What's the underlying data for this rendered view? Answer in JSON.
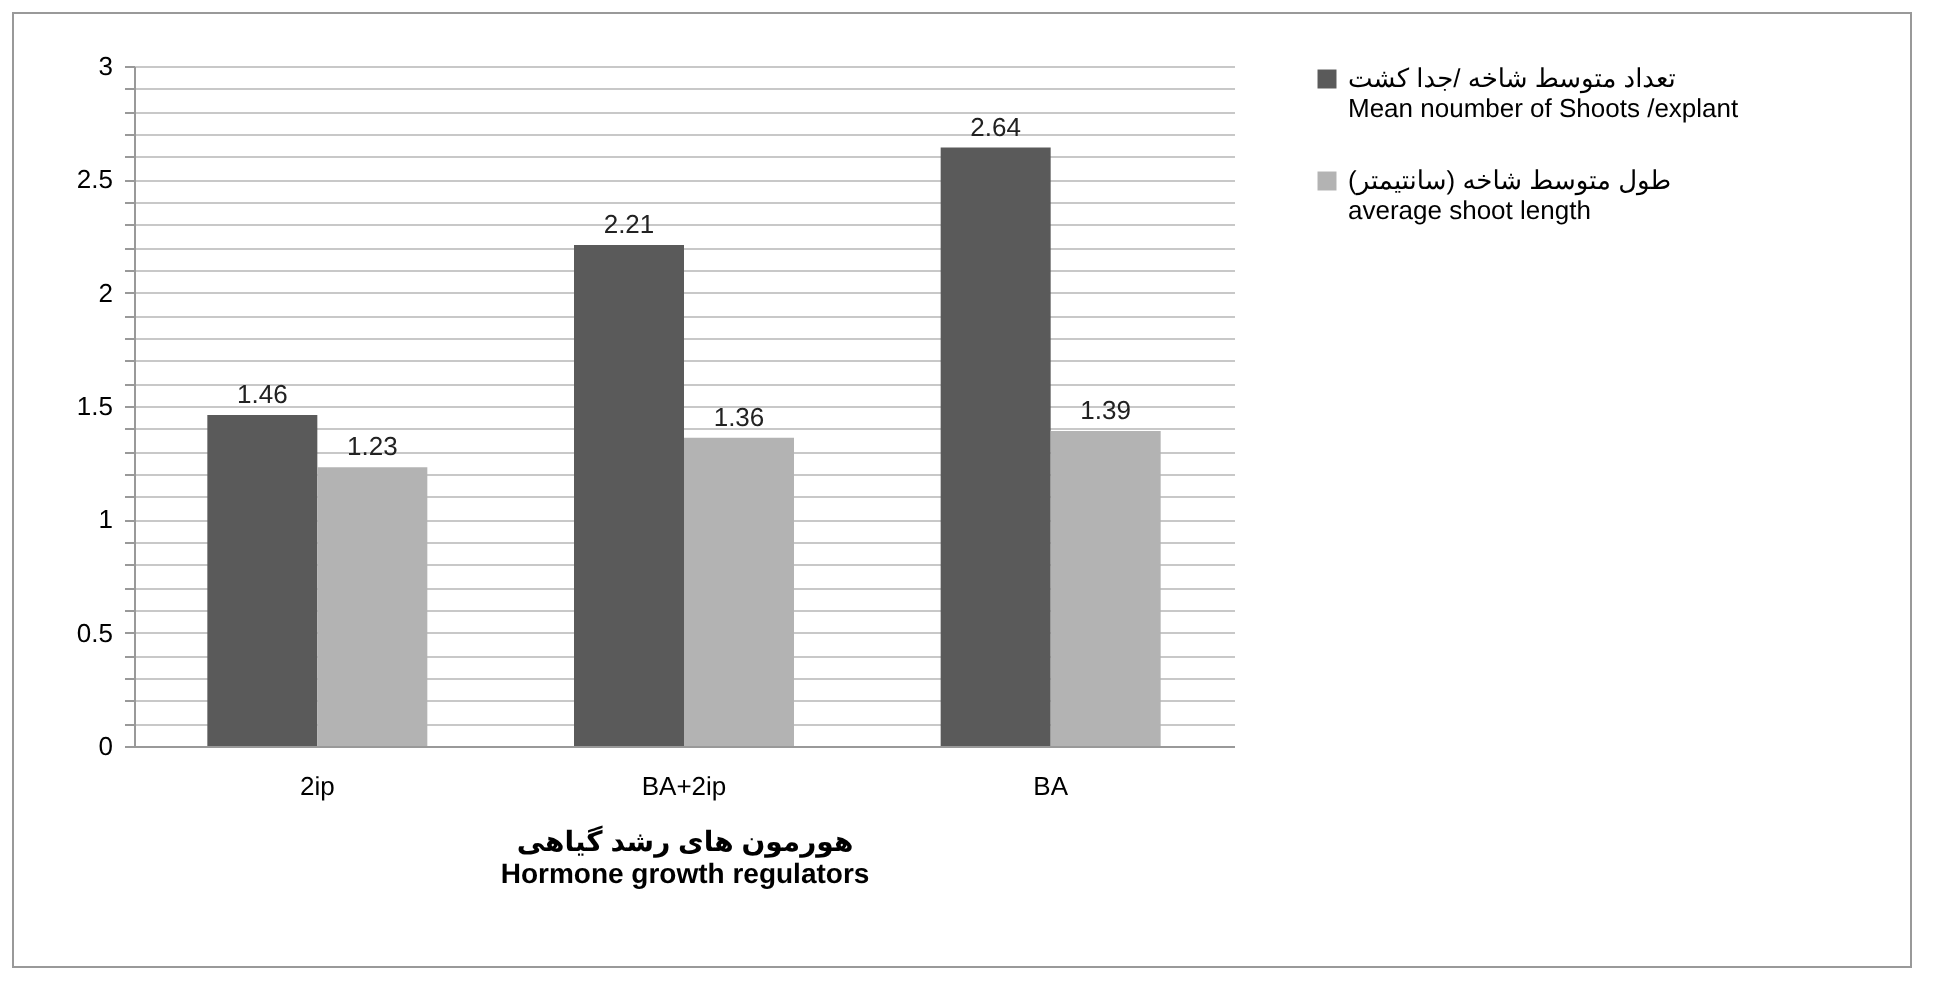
{
  "chart_data": {
    "type": "bar",
    "xlabel": "هورمون های رشد گیاهی\nHormone growth regulators",
    "categories": [
      "2ip",
      "BA+2ip",
      "BA"
    ],
    "series": [
      {
        "name": "تعداد متوسط شاخه /جدا کشت\nMean noumber of Shoots  /explant",
        "color": "#5a5a5a",
        "values": [
          1.46,
          2.21,
          2.64
        ]
      },
      {
        "name": "طول متوسط شاخه (سانتیمتر)\naverage shoot length",
        "color": "#b3b3b3",
        "values": [
          1.23,
          1.36,
          1.39
        ]
      }
    ],
    "ylim": [
      0,
      3
    ],
    "yticks": [
      0,
      {
        "value": 0.1,
        "label": null
      },
      {
        "value": 0.2,
        "label": null
      },
      {
        "value": 0.3,
        "label": null
      },
      {
        "value": 0.4,
        "label": null
      },
      0.5,
      {
        "value": 0.6,
        "label": null
      },
      {
        "value": 0.7,
        "label": null
      },
      {
        "value": 0.8,
        "label": null
      },
      {
        "value": 0.9,
        "label": null
      },
      1,
      {
        "value": 1.1,
        "label": null
      },
      {
        "value": 1.2,
        "label": null
      },
      {
        "value": 1.3,
        "label": null
      },
      {
        "value": 1.4,
        "label": null
      },
      1.5,
      {
        "value": 1.6,
        "label": null
      },
      {
        "value": 1.7,
        "label": null
      },
      {
        "value": 1.8,
        "label": null
      },
      {
        "value": 1.9,
        "label": null
      },
      2,
      {
        "value": 2.1,
        "label": null
      },
      {
        "value": 2.2,
        "label": null
      },
      {
        "value": 2.3,
        "label": null
      },
      {
        "value": 2.4,
        "label": null
      },
      2.5,
      {
        "value": 2.6,
        "label": null
      },
      {
        "value": 2.7,
        "label": null
      },
      {
        "value": 2.8,
        "label": null
      },
      {
        "value": 2.9,
        "label": null
      },
      3
    ],
    "grid": "y",
    "legend": "right",
    "data_labels": true
  }
}
